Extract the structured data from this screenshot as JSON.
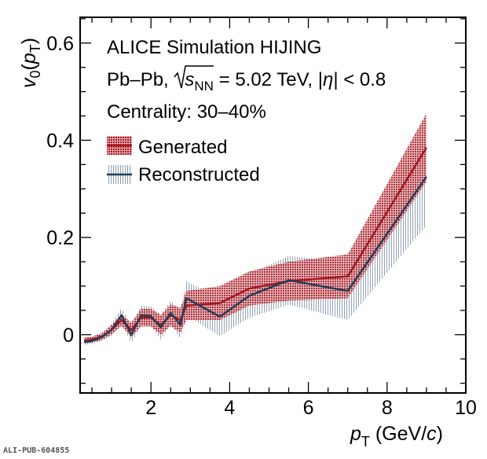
{
  "chart_data": {
    "type": "line",
    "title": "",
    "annotations": {
      "line1": "ALICE Simulation HIJING",
      "line2_prefix": "Pb–Pb, ",
      "line2_sqrt_s": "s",
      "line2_sub": "NN",
      "line2_suffix": " = 5.02 TeV, |",
      "line2_eta": "η",
      "line2_end": "| < 0.8",
      "line3": "Centrality: 30–40%"
    },
    "xlabel": {
      "var": "p",
      "sub": "T",
      "unit_open": " (GeV/",
      "unit_c": "c",
      "unit_close": ")"
    },
    "ylabel": {
      "var": "v",
      "sub0": "0",
      "open": "(",
      "p": "p",
      "subT": "T",
      "close": ")"
    },
    "xlim": [
      0.2,
      10
    ],
    "ylim": [
      -0.12,
      0.653
    ],
    "xticks": [
      2,
      4,
      6,
      8,
      10
    ],
    "xtick_labels": [
      "2",
      "4",
      "6",
      "8",
      "10"
    ],
    "yticks": [
      0,
      0.2,
      0.4,
      0.6
    ],
    "ytick_labels": [
      "0",
      "0.2",
      "0.4",
      "0.6"
    ],
    "legend_position": "top-left",
    "series": [
      {
        "name": "Generated",
        "color": "#a3161e",
        "band_color": "#b8303a",
        "x": [
          0.3,
          0.5,
          0.75,
          1.0,
          1.25,
          1.5,
          1.75,
          2.0,
          2.25,
          2.5,
          2.75,
          2.9,
          3.75,
          4.5,
          5.5,
          7.0,
          9.0
        ],
        "y": [
          -0.012,
          -0.01,
          -0.004,
          0.01,
          0.03,
          0.01,
          0.035,
          0.035,
          0.02,
          0.04,
          0.03,
          0.06,
          0.065,
          0.095,
          0.11,
          0.12,
          0.385
        ],
        "err": [
          0.006,
          0.006,
          0.007,
          0.01,
          0.012,
          0.015,
          0.018,
          0.018,
          0.02,
          0.022,
          0.025,
          0.03,
          0.035,
          0.035,
          0.04,
          0.045,
          0.07
        ]
      },
      {
        "name": "Reconstructed",
        "color": "#243c58",
        "band_color": "#8a9aad",
        "x": [
          0.3,
          0.5,
          0.75,
          1.0,
          1.25,
          1.5,
          1.75,
          2.0,
          2.25,
          2.5,
          2.75,
          2.9,
          3.75,
          4.5,
          5.5,
          7.0,
          9.0
        ],
        "y": [
          -0.015,
          -0.013,
          -0.005,
          0.01,
          0.04,
          0.0,
          0.04,
          0.038,
          0.015,
          0.045,
          0.02,
          0.075,
          0.037,
          0.08,
          0.112,
          0.09,
          0.325
        ],
        "err": [
          0.006,
          0.006,
          0.008,
          0.012,
          0.015,
          0.018,
          0.02,
          0.02,
          0.025,
          0.025,
          0.028,
          0.035,
          0.04,
          0.045,
          0.05,
          0.06,
          0.1
        ]
      }
    ]
  },
  "footer": {
    "id": "ALI-PUB-604855"
  }
}
